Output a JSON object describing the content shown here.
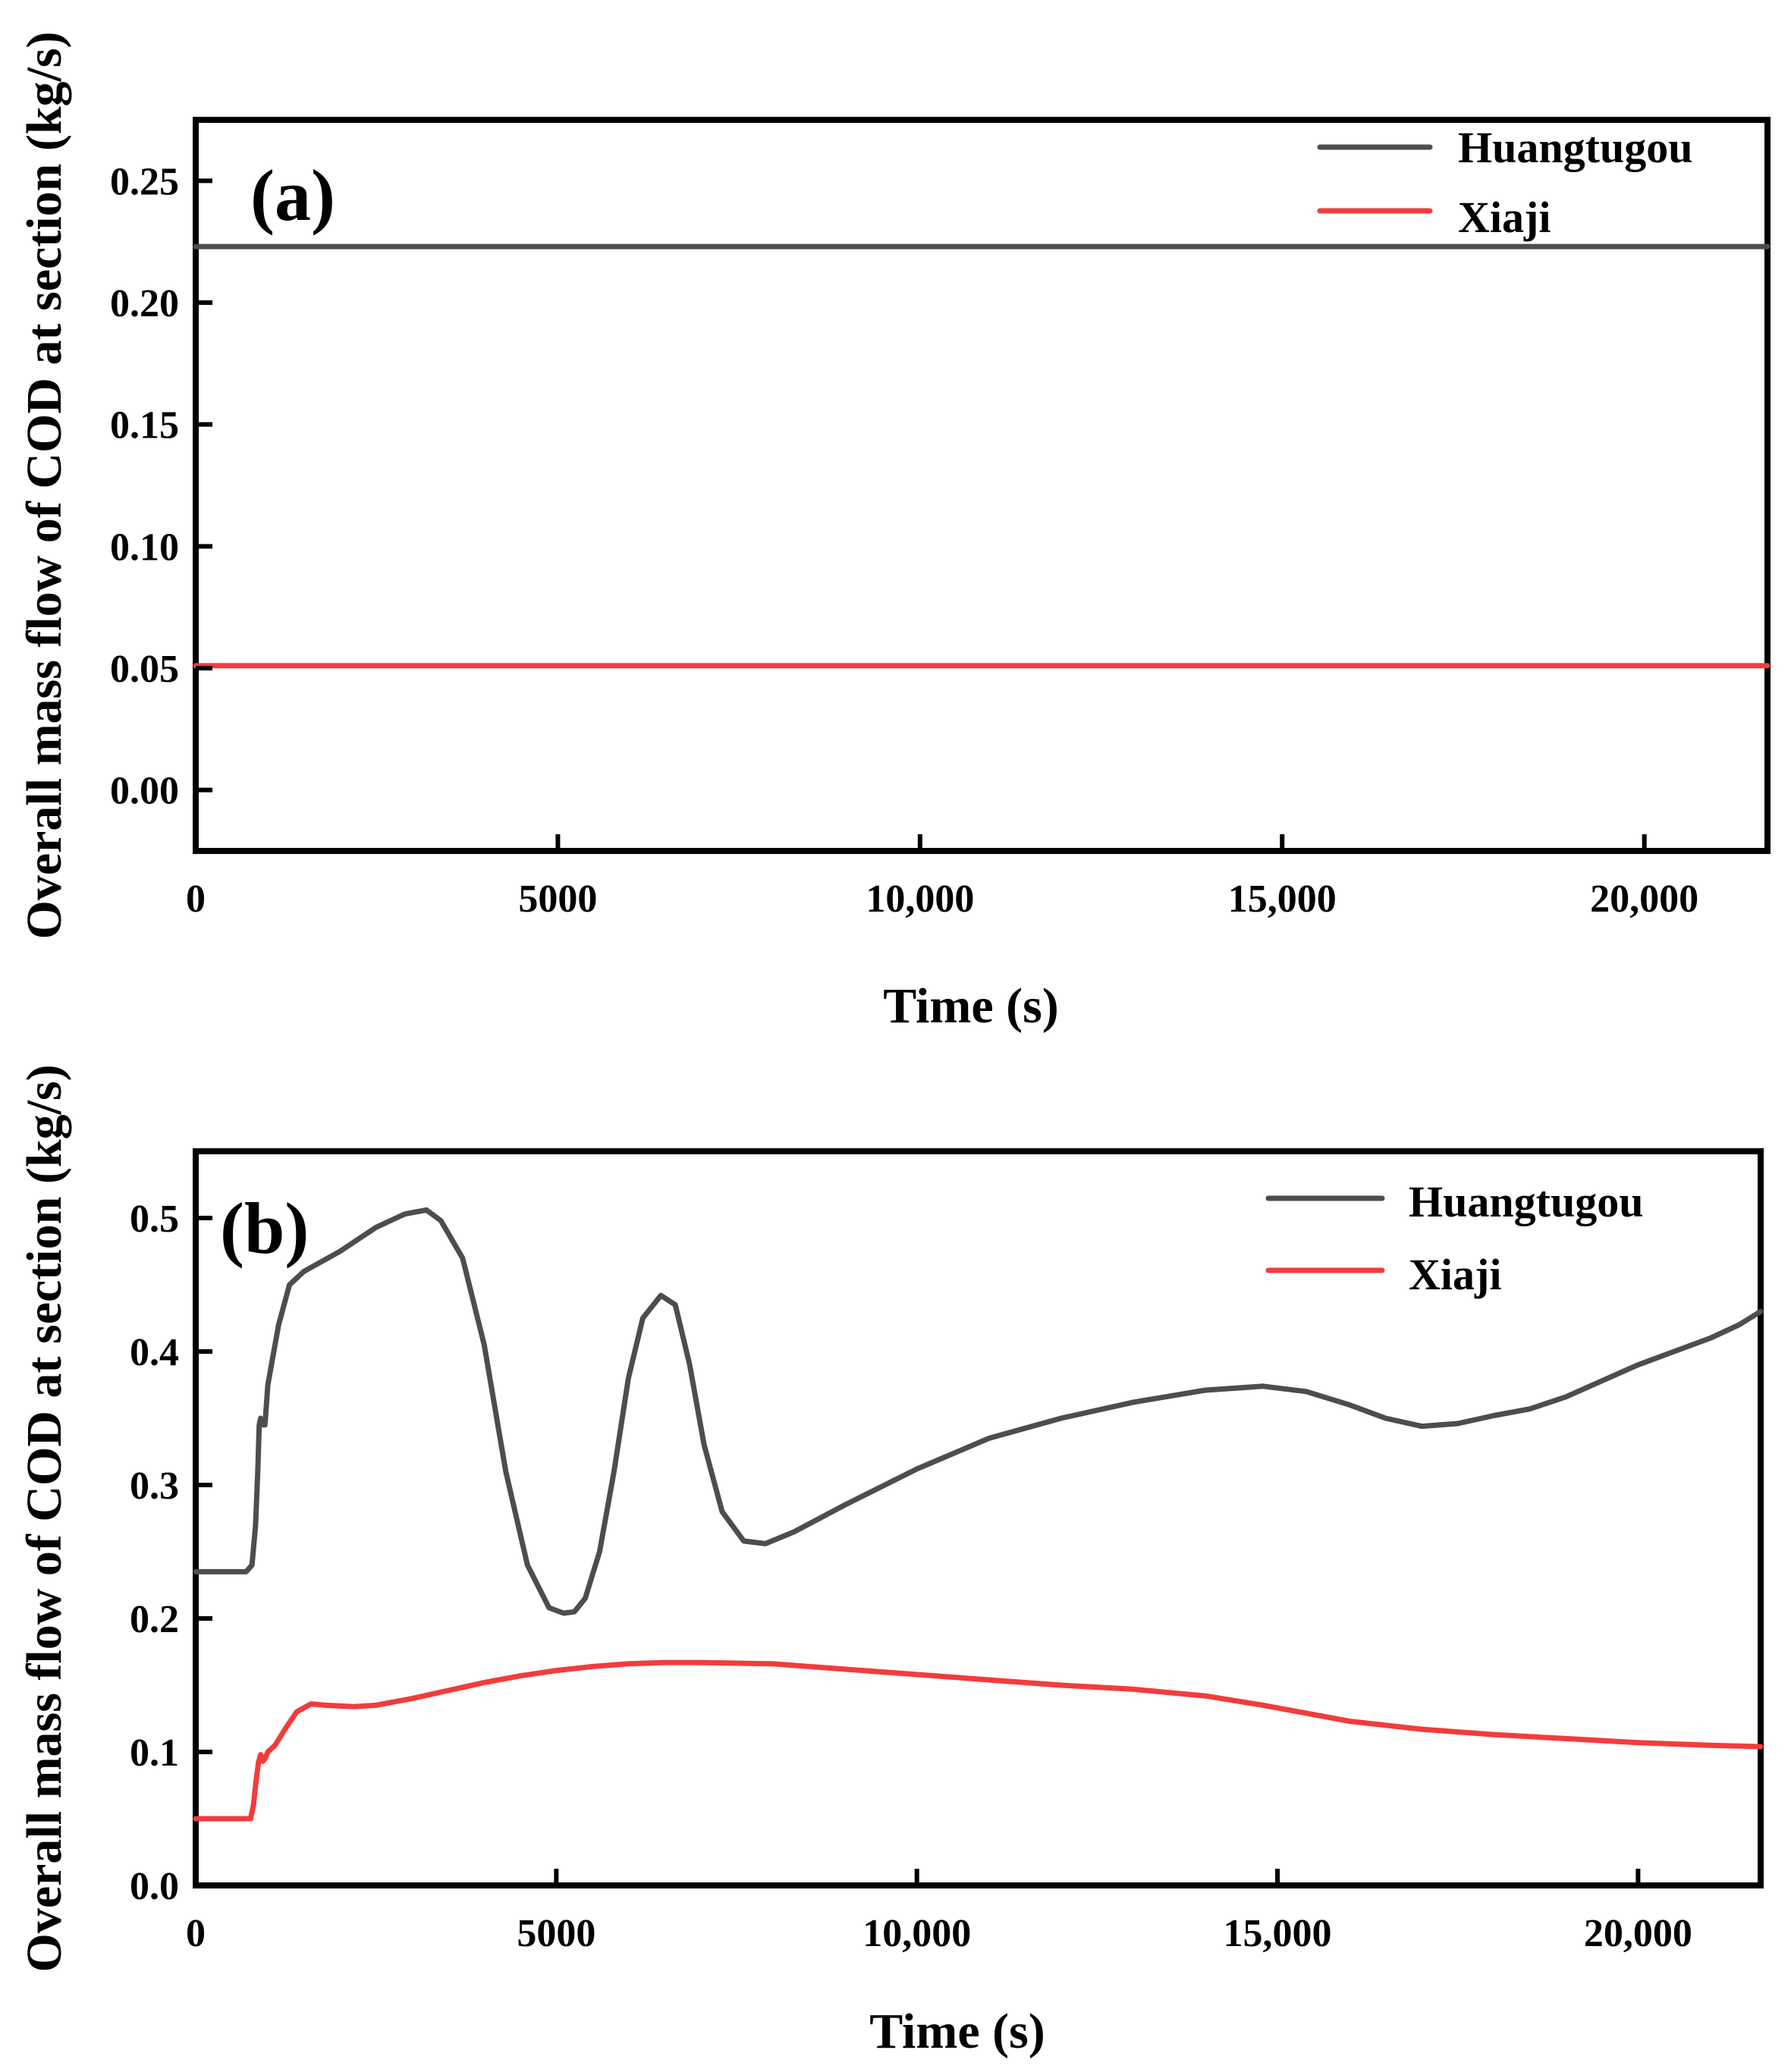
{
  "colors": {
    "huangtugou": "#4d4d4d",
    "xiaji": "#f23c3c",
    "axis": "#000000"
  },
  "chart_data": [
    {
      "type": "line",
      "panel_label": "(a)",
      "xlabel": "Time (s)",
      "ylabel": "Overall mass flow of COD at section (kg/s)",
      "xlim": [
        0,
        21700
      ],
      "ylim": [
        -0.025,
        0.275
      ],
      "xticks": [
        0,
        5000,
        10000,
        15000,
        20000
      ],
      "xtick_labels": [
        "0",
        "5000",
        "10,000",
        "15,000",
        "20,000"
      ],
      "yticks": [
        0,
        0.05,
        0.1,
        0.15,
        0.2,
        0.25
      ],
      "ytick_labels": [
        "0.00",
        "0.05",
        "0.10",
        "0.15",
        "0.20",
        "0.25"
      ],
      "legend_position": "top-right",
      "series": [
        {
          "name": "Huangtugou",
          "color": "#4d4d4d",
          "x": [
            0,
            21700
          ],
          "y": [
            0.223,
            0.223
          ]
        },
        {
          "name": "Xiaji",
          "color": "#f23c3c",
          "x": [
            0,
            21700
          ],
          "y": [
            0.051,
            0.051
          ]
        }
      ]
    },
    {
      "type": "line",
      "panel_label": "(b)",
      "xlabel": "Time (s)",
      "ylabel": "Overall mass flow of COD at section (kg/s)",
      "xlim": [
        0,
        21700
      ],
      "ylim": [
        0,
        0.55
      ],
      "xticks": [
        0,
        5000,
        10000,
        15000,
        20000
      ],
      "xtick_labels": [
        "0",
        "5000",
        "10,000",
        "15,000",
        "20,000"
      ],
      "yticks": [
        0,
        0.1,
        0.2,
        0.3,
        0.4,
        0.5
      ],
      "ytick_labels": [
        "0.0",
        "0.1",
        "0.2",
        "0.3",
        "0.4",
        "0.5"
      ],
      "legend_position": "top-right",
      "series": [
        {
          "name": "Huangtugou",
          "color": "#4d4d4d",
          "x": [
            0,
            700,
            780,
            830,
            860,
            880,
            900,
            940,
            960,
            1000,
            1050,
            1150,
            1300,
            1500,
            2000,
            2500,
            2900,
            3200,
            3400,
            3700,
            4000,
            4300,
            4600,
            4900,
            5100,
            5250,
            5400,
            5600,
            5800,
            6000,
            6200,
            6450,
            6650,
            6850,
            7050,
            7300,
            7600,
            7900,
            8300,
            9000,
            10000,
            11000,
            12000,
            13000,
            14000,
            14800,
            15400,
            16000,
            16500,
            17000,
            17500,
            18000,
            18500,
            19000,
            19500,
            20000,
            20500,
            21000,
            21400,
            21700
          ],
          "y": [
            0.235,
            0.235,
            0.24,
            0.27,
            0.31,
            0.345,
            0.35,
            0.345,
            0.345,
            0.375,
            0.39,
            0.42,
            0.45,
            0.46,
            0.475,
            0.493,
            0.503,
            0.506,
            0.498,
            0.47,
            0.405,
            0.31,
            0.24,
            0.208,
            0.204,
            0.205,
            0.215,
            0.25,
            0.31,
            0.38,
            0.425,
            0.442,
            0.435,
            0.39,
            0.33,
            0.28,
            0.258,
            0.256,
            0.265,
            0.285,
            0.312,
            0.335,
            0.35,
            0.362,
            0.371,
            0.374,
            0.37,
            0.36,
            0.35,
            0.344,
            0.346,
            0.352,
            0.357,
            0.366,
            0.378,
            0.39,
            0.4,
            0.41,
            0.42,
            0.43
          ]
        },
        {
          "name": "Xiaji",
          "color": "#f23c3c",
          "x": [
            0,
            700,
            760,
            800,
            830,
            870,
            900,
            930,
            960,
            1000,
            1100,
            1250,
            1400,
            1600,
            1800,
            2200,
            2500,
            3000,
            3500,
            4000,
            4500,
            5000,
            5500,
            6000,
            6500,
            7000,
            8000,
            9000,
            10000,
            11000,
            12000,
            13000,
            14000,
            14800,
            15500,
            16000,
            17000,
            18000,
            19000,
            20000,
            21000,
            21700
          ],
          "y": [
            0.05,
            0.05,
            0.05,
            0.06,
            0.075,
            0.092,
            0.098,
            0.093,
            0.095,
            0.1,
            0.105,
            0.118,
            0.13,
            0.136,
            0.135,
            0.134,
            0.135,
            0.14,
            0.146,
            0.152,
            0.157,
            0.161,
            0.164,
            0.166,
            0.167,
            0.167,
            0.166,
            0.162,
            0.158,
            0.154,
            0.15,
            0.147,
            0.142,
            0.135,
            0.128,
            0.123,
            0.117,
            0.113,
            0.11,
            0.107,
            0.105,
            0.104
          ]
        }
      ]
    }
  ]
}
